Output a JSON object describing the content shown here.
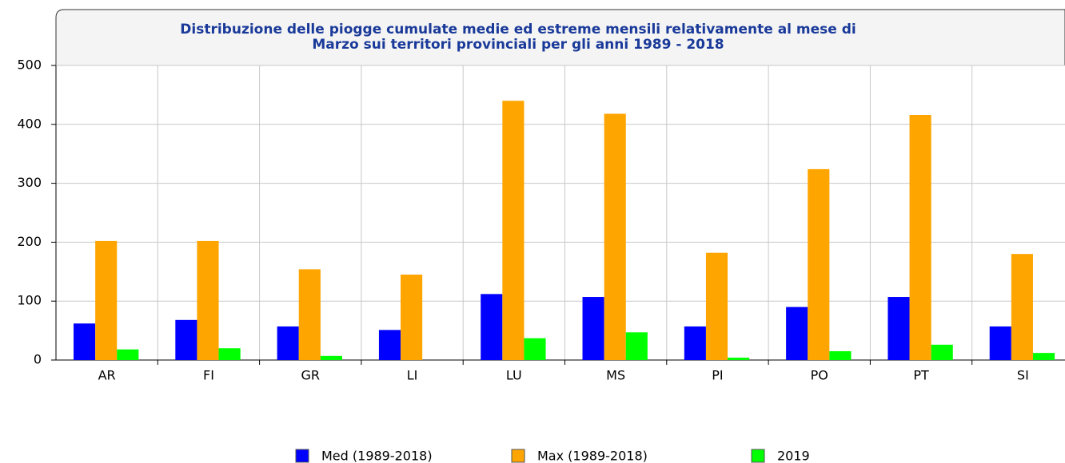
{
  "chart_data": {
    "type": "bar",
    "title": [
      "Distribuzione delle piogge cumulate medie ed estreme mensili relativamente al mese di",
      "Marzo sui territori provinciali per gli anni 1989 - 2018"
    ],
    "categories": [
      "AR",
      "FI",
      "GR",
      "LI",
      "LU",
      "MS",
      "PI",
      "PO",
      "PT",
      "SI"
    ],
    "series": [
      {
        "name": "Med (1989-2018)",
        "color": "#0000ff",
        "values": [
          62,
          68,
          57,
          51,
          112,
          107,
          57,
          90,
          107,
          57
        ]
      },
      {
        "name": "Max (1989-2018)",
        "color": "#ffa500",
        "values": [
          202,
          202,
          154,
          145,
          440,
          418,
          182,
          324,
          416,
          180
        ]
      },
      {
        "name": "2019",
        "color": "#00ff00",
        "values": [
          18,
          20,
          7,
          0,
          37,
          47,
          4,
          15,
          26,
          12
        ]
      }
    ],
    "ylim": [
      0,
      500
    ],
    "yticks": [
      0,
      100,
      200,
      300,
      400,
      500
    ],
    "grid": true,
    "legend": "bottom"
  }
}
